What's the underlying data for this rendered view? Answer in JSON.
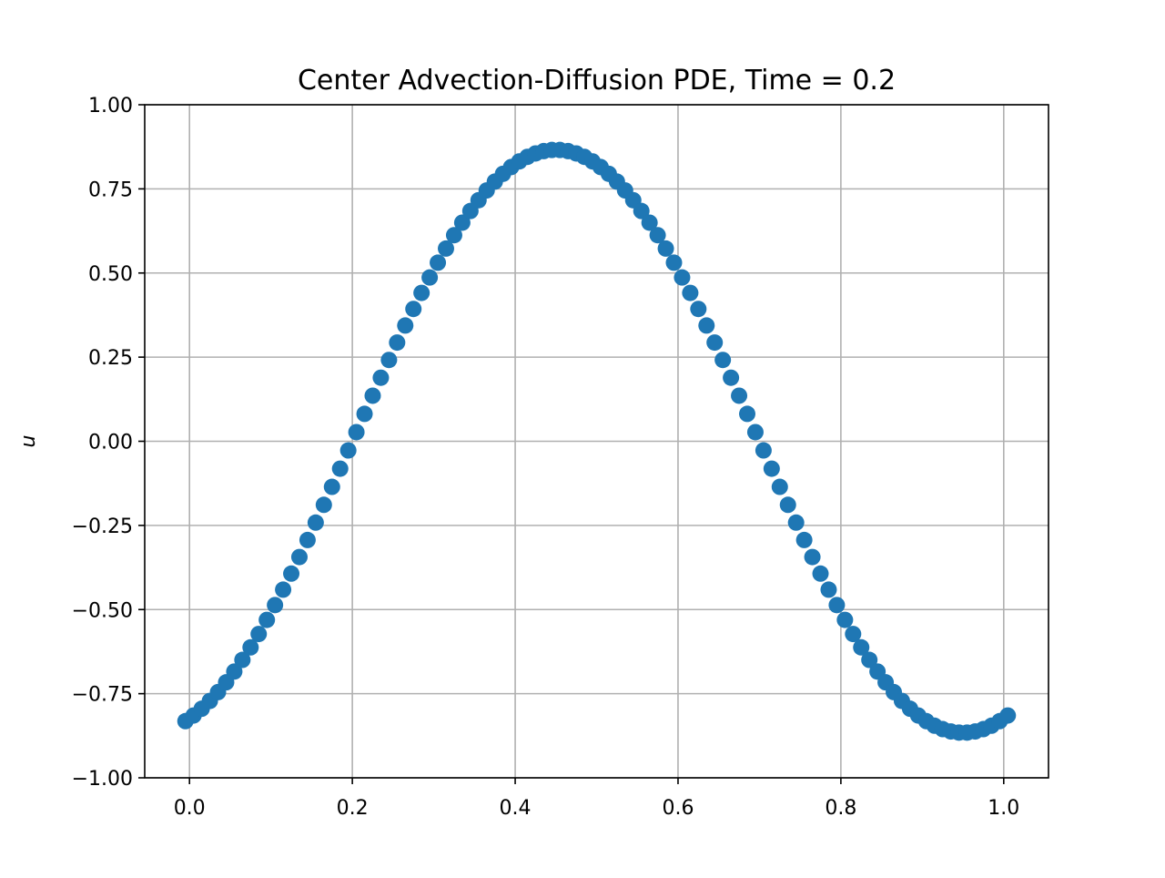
{
  "chart_data": {
    "type": "scatter",
    "title": "Center Advection-Diffusion PDE, Time = 0.2",
    "xlabel": "",
    "ylabel": "u",
    "xlim": [
      -0.055,
      1.055
    ],
    "ylim": [
      -1.0,
      1.0
    ],
    "grid": true,
    "marker_color": "#1f77b4",
    "x_ticks": [
      {
        "value": 0.0,
        "label": "0.0"
      },
      {
        "value": 0.2,
        "label": "0.2"
      },
      {
        "value": 0.4,
        "label": "0.4"
      },
      {
        "value": 0.6,
        "label": "0.6"
      },
      {
        "value": 0.8,
        "label": "0.8"
      },
      {
        "value": 1.0,
        "label": "1.0"
      }
    ],
    "y_ticks": [
      {
        "value": 1.0,
        "label": "1.00"
      },
      {
        "value": 0.75,
        "label": "0.75"
      },
      {
        "value": 0.5,
        "label": "0.50"
      },
      {
        "value": 0.25,
        "label": "0.25"
      },
      {
        "value": 0.0,
        "label": "0.00"
      },
      {
        "value": -0.25,
        "label": "−0.25"
      },
      {
        "value": -0.5,
        "label": "−0.50"
      },
      {
        "value": -0.75,
        "label": "−0.75"
      },
      {
        "value": -1.0,
        "label": "−1.00"
      }
    ],
    "series": [
      {
        "x_start": -0.005,
        "x_end": 1.005,
        "count": 102,
        "amplitude": 0.866,
        "peak_x": 0.45,
        "wavelength": 1.0
      }
    ]
  }
}
